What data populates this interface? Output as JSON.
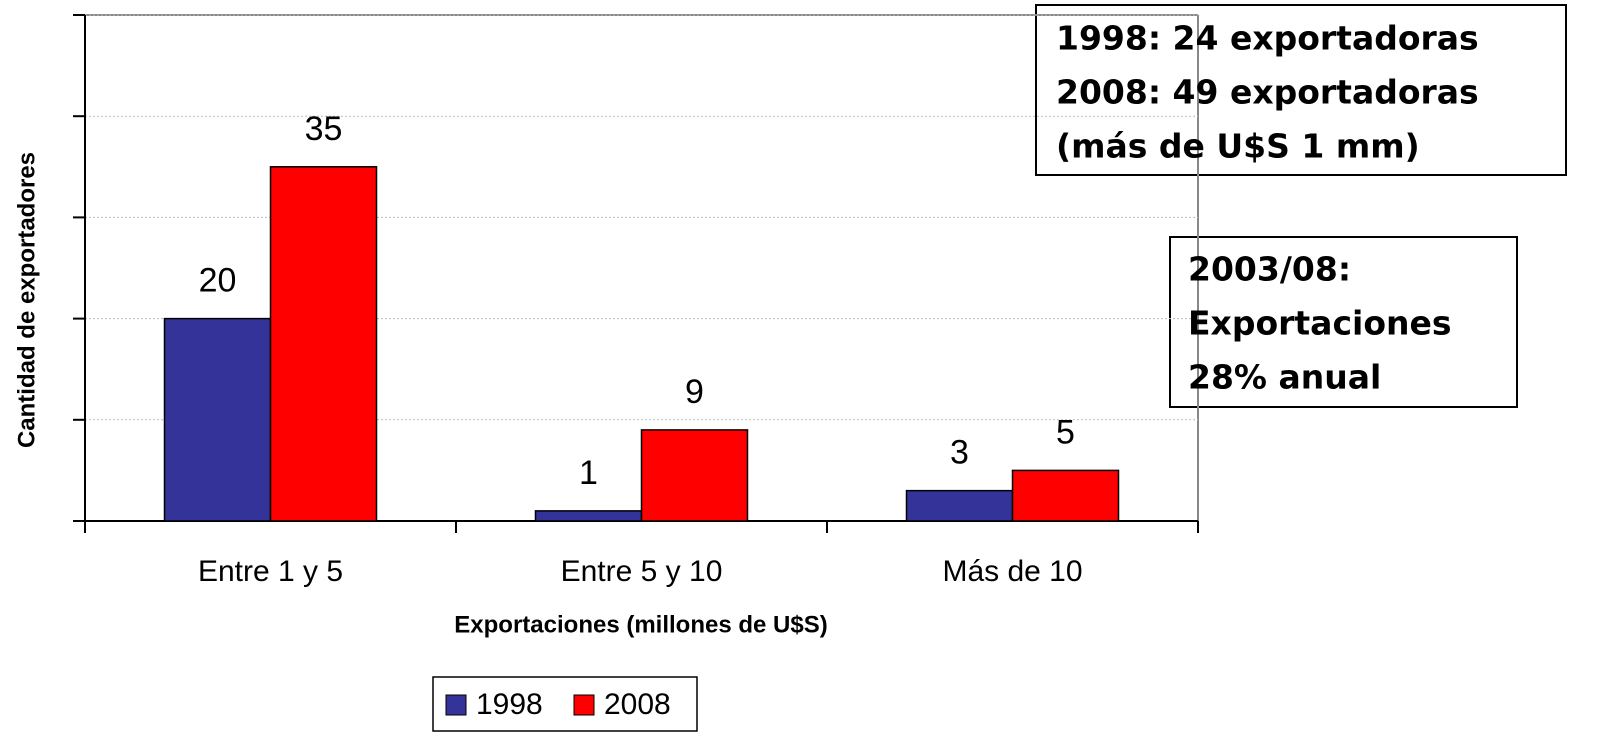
{
  "chart_data": {
    "type": "bar",
    "y_label": "Cantidad de exportadores",
    "x_label": "Exportaciones (millones de U$S)",
    "categories": [
      "Entre 1 y 5",
      "Entre 5 y 10",
      "Más de 10"
    ],
    "series": [
      {
        "name": "1998",
        "color": "#333399",
        "values": [
          20,
          1,
          3
        ]
      },
      {
        "name": "2008",
        "color": "#ff0000",
        "values": [
          35,
          9,
          5
        ]
      }
    ],
    "ylim": [
      0,
      50
    ],
    "yticks": [
      0,
      10,
      20,
      30,
      40,
      50
    ],
    "grid": true,
    "annotations": [
      [
        "1998: 24 exportadoras",
        "2008: 49 exportadoras",
        "(más de U$S 1 mm)"
      ],
      [
        "2003/08:",
        "Exportaciones",
        "28% anual"
      ]
    ]
  }
}
